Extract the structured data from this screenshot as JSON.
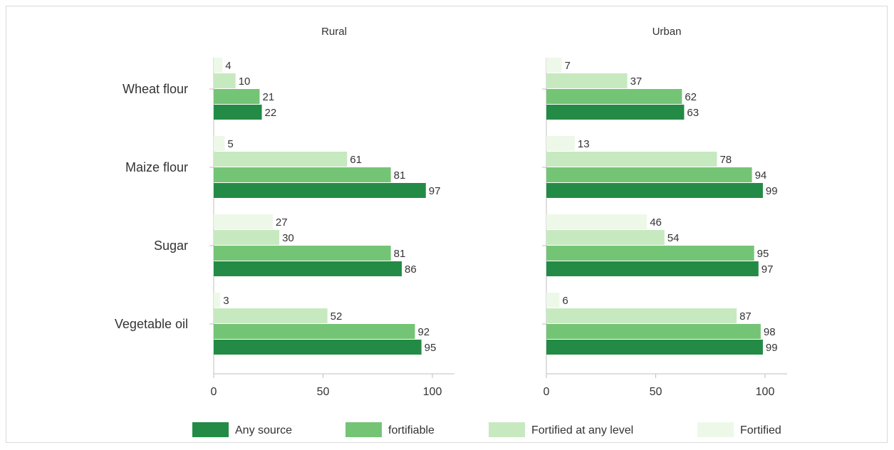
{
  "chart_data": {
    "type": "bar",
    "orientation": "horizontal",
    "panels": [
      {
        "title": "Rural",
        "categories": [
          "Wheat flour",
          "Maize flour",
          "Sugar",
          "Vegetable oil"
        ],
        "series": [
          {
            "name": "Any source",
            "values": [
              22,
              97,
              86,
              95
            ]
          },
          {
            "name": "fortifiable",
            "values": [
              21,
              81,
              81,
              92
            ]
          },
          {
            "name": "Fortified at any level",
            "values": [
              10,
              61,
              30,
              52
            ]
          },
          {
            "name": "Fortified",
            "values": [
              4,
              5,
              27,
              3
            ]
          }
        ],
        "xlim": [
          0,
          100
        ],
        "xticks": [
          0,
          50,
          100
        ]
      },
      {
        "title": "Urban",
        "categories": [
          "Wheat flour",
          "Maize flour",
          "Sugar",
          "Vegetable oil"
        ],
        "series": [
          {
            "name": "Any source",
            "values": [
              63,
              99,
              97,
              99
            ]
          },
          {
            "name": "fortifiable",
            "values": [
              62,
              94,
              95,
              98
            ]
          },
          {
            "name": "Fortified at any level",
            "values": [
              37,
              78,
              54,
              87
            ]
          },
          {
            "name": "Fortified",
            "values": [
              7,
              13,
              46,
              6
            ]
          }
        ],
        "xlim": [
          0,
          100
        ],
        "xticks": [
          0,
          50,
          100
        ]
      }
    ],
    "colors": {
      "Any source": "#238b45",
      "fortifiable": "#74c476",
      "Fortified at any level": "#c7e9c0",
      "Fortified": "#edf8e9"
    },
    "legend": {
      "position": "bottom",
      "items": [
        "Any source",
        "fortifiable",
        "Fortified at any level",
        "Fortified"
      ]
    },
    "grid": false
  }
}
